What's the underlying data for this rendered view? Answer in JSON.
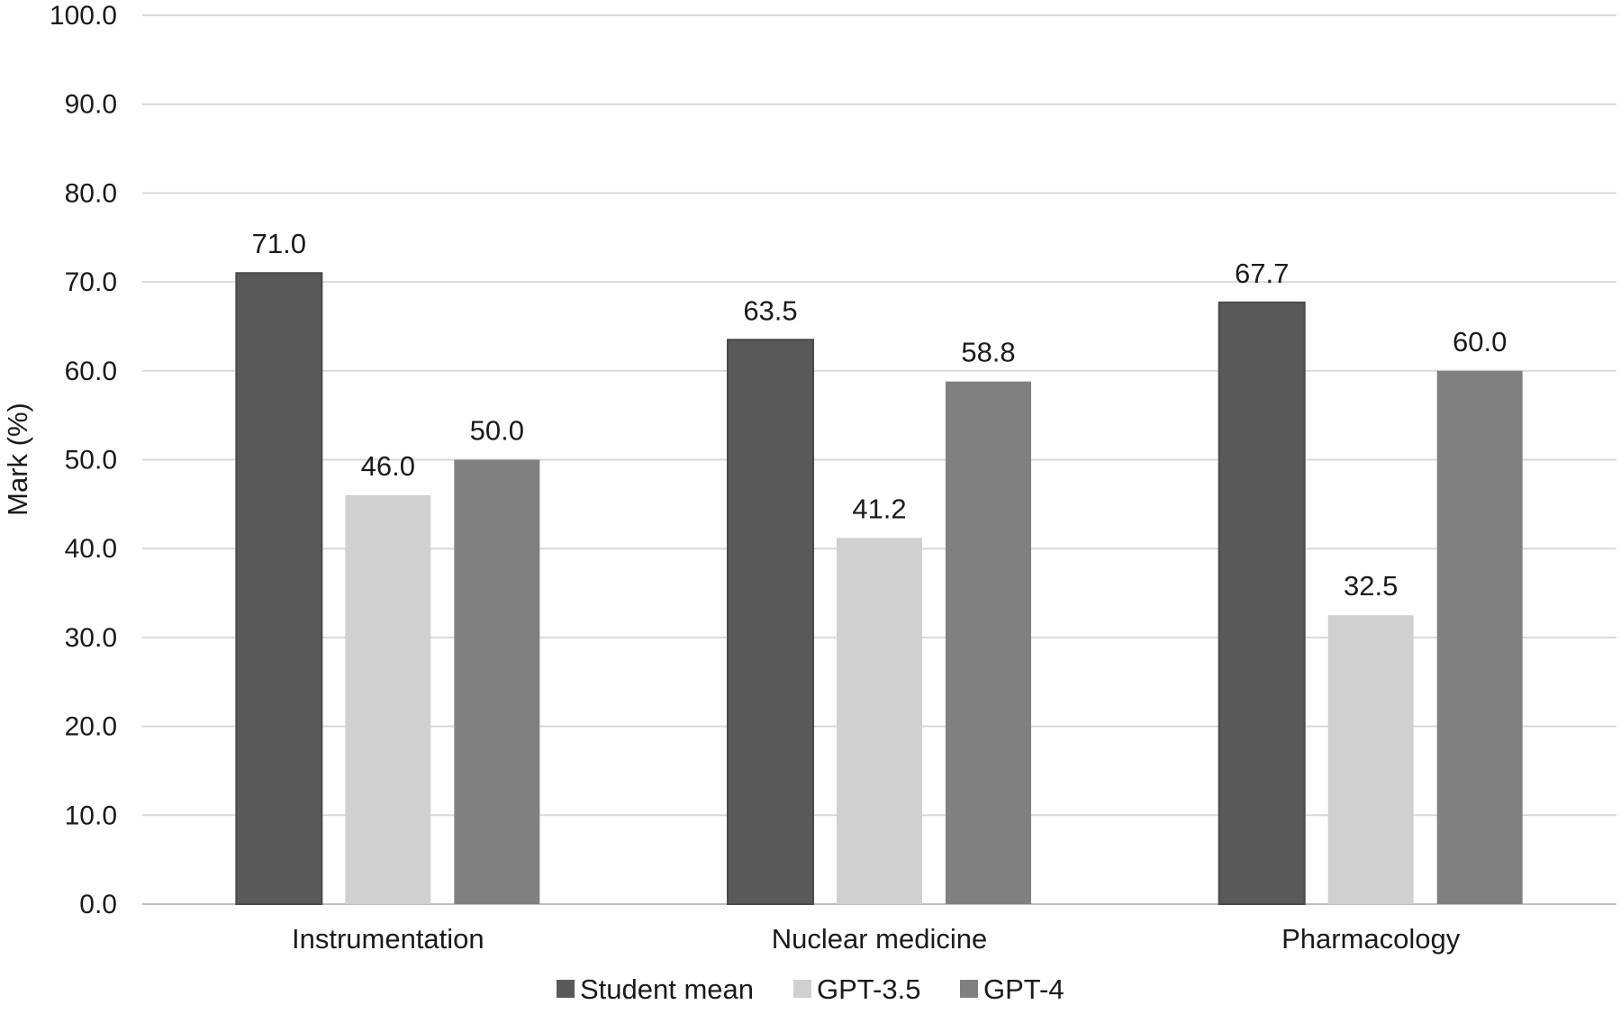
{
  "chart_data": {
    "type": "bar",
    "title": "",
    "xlabel": "",
    "ylabel": "Mark (%)",
    "ylim": [
      0,
      100
    ],
    "yticks": [
      "0.0",
      "10.0",
      "20.0",
      "30.0",
      "40.0",
      "50.0",
      "60.0",
      "70.0",
      "80.0",
      "90.0",
      "100.0"
    ],
    "grid": true,
    "legend_position": "bottom-center",
    "categories": [
      "Instrumentation",
      "Nuclear medicine",
      "Pharmacology"
    ],
    "series": [
      {
        "name": "Student mean",
        "color": "#595959",
        "values": [
          71.0,
          63.5,
          67.7
        ],
        "labels": [
          "71.0",
          "63.5",
          "67.7"
        ]
      },
      {
        "name": "GPT-3.5",
        "color": "#d0d0d0",
        "values": [
          46.0,
          41.2,
          32.5
        ],
        "labels": [
          "46.0",
          "41.2",
          "32.5"
        ]
      },
      {
        "name": "GPT-4",
        "color": "#808080",
        "values": [
          50.0,
          58.8,
          60.0
        ],
        "labels": [
          "50.0",
          "58.8",
          "60.0"
        ]
      }
    ]
  }
}
